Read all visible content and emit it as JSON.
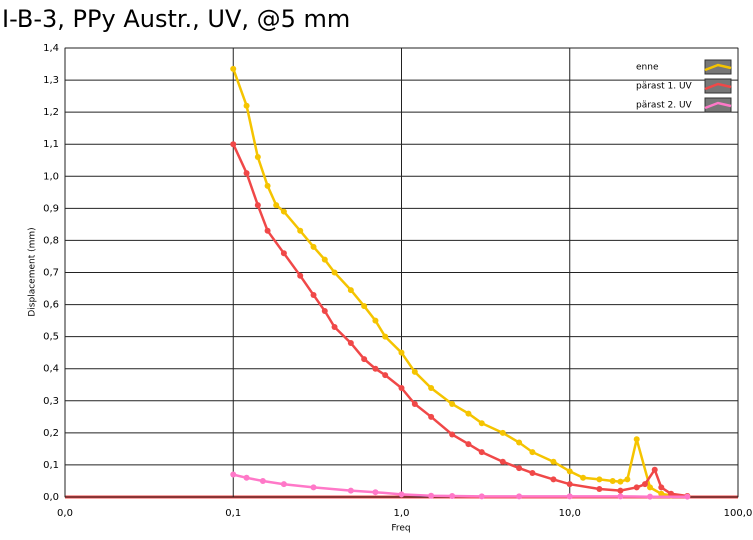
{
  "chart_data": {
    "type": "line",
    "title": "I-B-3, PPy Austr., UV, @5 mm",
    "x_label": "Freq",
    "y_label": "Displacement (mm)",
    "x_log": true,
    "grid": true,
    "legend": "top-right",
    "xlim": [
      0.01,
      100
    ],
    "xticks": [
      {
        "value": 0.01,
        "label": "0,0"
      },
      {
        "value": 0.1,
        "label": "0,1"
      },
      {
        "value": 1,
        "label": "1,0"
      },
      {
        "value": 10,
        "label": "10,0"
      },
      {
        "value": 100,
        "label": "100,0"
      }
    ],
    "ylim": [
      0,
      1.4
    ],
    "yticks": [
      {
        "value": 0,
        "label": "0,0"
      },
      {
        "value": 0.1,
        "label": "0,1"
      },
      {
        "value": 0.2,
        "label": "0,2"
      },
      {
        "value": 0.3,
        "label": "0,3"
      },
      {
        "value": 0.4,
        "label": "0,4"
      },
      {
        "value": 0.5,
        "label": "0,5"
      },
      {
        "value": 0.6,
        "label": "0,6"
      },
      {
        "value": 0.7,
        "label": "0,7"
      },
      {
        "value": 0.8,
        "label": "0,8"
      },
      {
        "value": 0.9,
        "label": "0,9"
      },
      {
        "value": 1,
        "label": "1,0"
      },
      {
        "value": 1.1,
        "label": "1,1"
      },
      {
        "value": 1.2,
        "label": "1,2"
      },
      {
        "value": 1.3,
        "label": "1,3"
      },
      {
        "value": 1.4,
        "label": "1,4"
      }
    ],
    "series": [
      {
        "name": "enne",
        "color": "#f5c400",
        "x": [
          0.1,
          0.12,
          0.14,
          0.16,
          0.18,
          0.2,
          0.25,
          0.3,
          0.35,
          0.4,
          0.5,
          0.6,
          0.7,
          0.8,
          1,
          1.2,
          1.5,
          2,
          2.5,
          3,
          4,
          5,
          6,
          8,
          10,
          12,
          15,
          18,
          20,
          22,
          25,
          30,
          35,
          40,
          50
        ],
        "values": [
          1.335,
          1.22,
          1.06,
          0.97,
          0.91,
          0.89,
          0.83,
          0.78,
          0.74,
          0.7,
          0.645,
          0.595,
          0.55,
          0.5,
          0.45,
          0.39,
          0.34,
          0.29,
          0.26,
          0.23,
          0.2,
          0.17,
          0.14,
          0.11,
          0.08,
          0.06,
          0.055,
          0.05,
          0.048,
          0.055,
          0.18,
          0.03,
          0.01,
          0.005,
          0.003
        ]
      },
      {
        "name": "pärast 1. UV",
        "color": "#f04848",
        "x": [
          0.1,
          0.12,
          0.14,
          0.16,
          0.2,
          0.25,
          0.3,
          0.35,
          0.4,
          0.5,
          0.6,
          0.7,
          0.8,
          1,
          1.2,
          1.5,
          2,
          2.5,
          3,
          4,
          5,
          6,
          8,
          10,
          15,
          20,
          25,
          28,
          32,
          35,
          40,
          50
        ],
        "values": [
          1.1,
          1.01,
          0.91,
          0.83,
          0.76,
          0.69,
          0.63,
          0.58,
          0.53,
          0.48,
          0.43,
          0.4,
          0.38,
          0.34,
          0.29,
          0.25,
          0.195,
          0.165,
          0.14,
          0.11,
          0.09,
          0.075,
          0.055,
          0.04,
          0.025,
          0.02,
          0.03,
          0.04,
          0.085,
          0.03,
          0.01,
          0.003
        ]
      },
      {
        "name": "pärast 2. UV",
        "color": "#ff78c8",
        "x": [
          0.1,
          0.12,
          0.15,
          0.2,
          0.3,
          0.5,
          0.7,
          1,
          1.5,
          2,
          3,
          5,
          10,
          20,
          30,
          50
        ],
        "values": [
          0.07,
          0.06,
          0.05,
          0.04,
          0.03,
          0.02,
          0.015,
          0.008,
          0.004,
          0.003,
          0.002,
          0.002,
          0.002,
          0.002,
          0.001,
          0.001
        ]
      }
    ]
  }
}
